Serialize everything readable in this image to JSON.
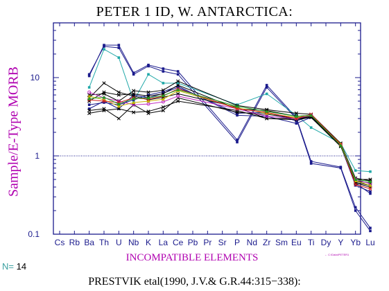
{
  "header": {
    "title": "PETER 1 ID, W. ANTARCTICA:"
  },
  "footer": {
    "n_key": "N=",
    "n_value": "14",
    "file_tag": "← C:\\Data\\PETER1",
    "reference": "PRESTVIK etal(1990, J.V.& G.R.44:315−338):"
  },
  "colors": {
    "axis": "#1a1a8c",
    "reference_line": "#1a1a8c",
    "label": "#b000b0"
  },
  "chart_data": {
    "type": "line",
    "title": "PETER 1 ID, W. ANTARCTICA:",
    "xlabel": "INCOMPATIBLE ELEMENTS",
    "ylabel": "Sample/E-Type MORB",
    "yscale": "log",
    "ylim": [
      0.1,
      50
    ],
    "yticks": [
      0.1,
      1,
      10
    ],
    "ytick_labels": [
      "0.1",
      "1",
      "10"
    ],
    "reference_line": 1,
    "grid": false,
    "legend": "none",
    "categories": [
      "Cs",
      "Rb",
      "Ba",
      "Th",
      "U",
      "Nb",
      "K",
      "La",
      "Ce",
      "Pb",
      "Pr",
      "Sr",
      "P",
      "Nd",
      "Zr",
      "Sm",
      "Eu",
      "Ti",
      "Dy",
      "Y",
      "Yb",
      "Lu"
    ],
    "series": [
      {
        "color": "#1a1a8c",
        "marker": "square",
        "values": [
          null,
          null,
          11,
          25,
          24,
          11,
          14,
          12,
          11,
          null,
          null,
          null,
          1.5,
          null,
          7.5,
          null,
          3,
          0.8,
          null,
          0.7,
          0.2,
          0.11
        ]
      },
      {
        "color": "#1a1a8c",
        "marker": "square",
        "values": [
          null,
          null,
          10.5,
          26,
          26,
          11.5,
          14.5,
          13,
          12,
          null,
          null,
          null,
          1.6,
          null,
          8,
          null,
          3.1,
          0.85,
          null,
          0.72,
          0.22,
          0.12
        ]
      },
      {
        "color": "#20a8a8",
        "marker": "square",
        "values": [
          null,
          null,
          7.5,
          23,
          18,
          5,
          11,
          8.5,
          8.5,
          null,
          null,
          null,
          4.5,
          null,
          6.2,
          null,
          3.3,
          2.3,
          null,
          1.45,
          0.65,
          0.63
        ]
      },
      {
        "color": "#1a1a8c",
        "marker": "square",
        "values": [
          null,
          null,
          4,
          5,
          4,
          6,
          5.5,
          6.3,
          7.5,
          null,
          null,
          null,
          3.5,
          null,
          3.6,
          null,
          2.8,
          3.2,
          null,
          1.4,
          0.45,
          0.33
        ]
      },
      {
        "color": "#1a1a8c",
        "marker": "square",
        "values": [
          null,
          null,
          4.5,
          4.8,
          4.5,
          5.2,
          6,
          6.6,
          7.8,
          null,
          null,
          null,
          3.3,
          null,
          3.2,
          null,
          2.6,
          3.1,
          null,
          1.35,
          0.42,
          0.35
        ]
      },
      {
        "color": "#000000",
        "marker": "cross",
        "values": [
          null,
          null,
          5,
          6.5,
          6,
          6.2,
          5.8,
          6.2,
          8,
          null,
          null,
          null,
          4,
          null,
          3.8,
          null,
          3.2,
          3.3,
          null,
          1.4,
          0.48,
          0.45
        ]
      },
      {
        "color": "#000000",
        "marker": "cross",
        "values": [
          null,
          null,
          3.8,
          4,
          3,
          4.5,
          3.5,
          3.8,
          5.5,
          null,
          null,
          null,
          3.6,
          null,
          3.4,
          null,
          3,
          3.2,
          null,
          1.38,
          0.46,
          0.42
        ]
      },
      {
        "color": "#000000",
        "marker": "cross",
        "values": [
          null,
          null,
          5.5,
          8.5,
          6.5,
          5.8,
          5.2,
          5.6,
          6.2,
          null,
          null,
          null,
          4.2,
          null,
          3,
          null,
          3,
          3.1,
          null,
          1.32,
          0.5,
          0.5
        ]
      },
      {
        "color": "#000000",
        "marker": "cross",
        "values": [
          null,
          null,
          6,
          6.2,
          5,
          6.8,
          6.5,
          6.9,
          9,
          null,
          null,
          null,
          4.4,
          null,
          3.9,
          null,
          3.5,
          3.4,
          null,
          1.45,
          0.52,
          0.48
        ]
      },
      {
        "color": "#000000",
        "marker": "cross",
        "values": [
          null,
          null,
          3.5,
          3.8,
          4,
          3.6,
          3.7,
          4.2,
          5,
          null,
          null,
          null,
          3.8,
          null,
          3,
          null,
          2.9,
          3.1,
          null,
          1.35,
          0.45,
          0.4
        ]
      },
      {
        "color": "#c030c0",
        "marker": "circle",
        "values": [
          null,
          null,
          6.5,
          5.5,
          5,
          4.5,
          4.6,
          4.9,
          5.8,
          null,
          null,
          null,
          4,
          null,
          3.2,
          null,
          3,
          3.3,
          null,
          1.4,
          0.5,
          0.44
        ]
      },
      {
        "color": "#c8b400",
        "marker": "triangle",
        "values": [
          null,
          null,
          5.8,
          5.2,
          4.3,
          4.8,
          5,
          5.3,
          6.8,
          null,
          null,
          null,
          4.1,
          null,
          3.5,
          null,
          3.1,
          3.3,
          null,
          1.42,
          0.48,
          0.42
        ]
      },
      {
        "color": "#d02020",
        "marker": "cross",
        "values": [
          null,
          null,
          5.2,
          5,
          4.8,
          5.5,
          5.3,
          5.8,
          7.2,
          null,
          null,
          null,
          4,
          null,
          3.6,
          null,
          3,
          3.4,
          null,
          1.4,
          0.43,
          0.38
        ]
      },
      {
        "color": "#20a020",
        "marker": "triangle",
        "values": [
          null,
          null,
          5.4,
          5.6,
          4.6,
          5.4,
          5.5,
          5.9,
          7,
          null,
          null,
          null,
          4.3,
          null,
          3.7,
          null,
          3.2,
          3.3,
          null,
          1.36,
          0.5,
          0.47
        ]
      }
    ]
  }
}
